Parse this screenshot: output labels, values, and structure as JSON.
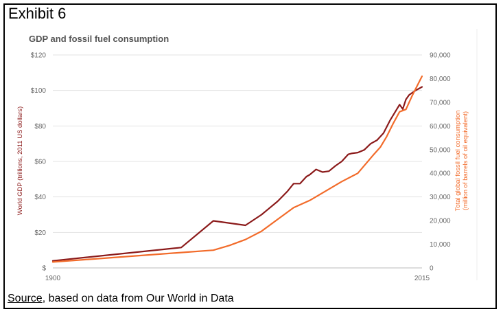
{
  "header": {
    "exhibit_label": "Exhibit 6"
  },
  "footer": {
    "source_link": "Source",
    "source_rest": ", based on data from Our World in Data"
  },
  "colors": {
    "gdp": "#8b1a1a",
    "fuel": "#f26b2a",
    "grid": "#e3e3e3",
    "tick": "#666666"
  },
  "chart_data": {
    "type": "line",
    "title": "GDP and fossil fuel consumption",
    "xlabel": "",
    "ylabel": "World GDP (trillions, 2011 US dollars)",
    "y2label_line1": "Total global fossil fuel consumption",
    "y2label_line2": "(million of barrels of oil equivalent)",
    "xlim": [
      1900,
      2015
    ],
    "ylim": [
      0,
      120
    ],
    "y2lim": [
      0,
      90000
    ],
    "x_ticks": [
      "1900",
      "2015"
    ],
    "y_ticks": [
      "$",
      "$20",
      "$40",
      "$60",
      "$80",
      "$100",
      "$120"
    ],
    "y2_ticks": [
      "0",
      "10,000",
      "20,000",
      "30,000",
      "40,000",
      "50,000",
      "60,000",
      "70,000",
      "80,000",
      "90,000"
    ],
    "grid": true,
    "series": [
      {
        "name": "World GDP",
        "axis": "left",
        "x": [
          1900,
          1940,
          1950,
          1960,
          1965,
          1967,
          1970,
          1973,
          1975,
          1977,
          1979,
          1980,
          1982,
          1984,
          1986,
          1988,
          1990,
          1992,
          1993,
          1995,
          1997,
          1999,
          2001,
          2003,
          2005,
          2007,
          2008,
          2009,
          2010,
          2011,
          2013,
          2015
        ],
        "values": [
          4,
          11.5,
          26.5,
          24,
          30,
          33,
          37.5,
          43,
          47.5,
          47.5,
          51.5,
          52.5,
          55.5,
          54,
          54.5,
          57.5,
          60,
          64,
          64.5,
          65,
          66.5,
          70,
          72,
          76,
          83,
          89,
          92,
          89.5,
          95,
          97.5,
          100,
          102
        ]
      },
      {
        "name": "Total global fossil fuel consumption",
        "axis": "right",
        "x": [
          1900,
          1920,
          1940,
          1950,
          1955,
          1960,
          1965,
          1970,
          1975,
          1980,
          1985,
          1990,
          1995,
          2000,
          2002,
          2004,
          2006,
          2008,
          2010,
          2012,
          2015
        ],
        "values": [
          2500,
          4500,
          6500,
          7500,
          9500,
          12000,
          15500,
          20500,
          25500,
          28500,
          32500,
          36500,
          40000,
          48000,
          51000,
          55500,
          61000,
          66000,
          67000,
          73000,
          81000
        ]
      }
    ]
  }
}
